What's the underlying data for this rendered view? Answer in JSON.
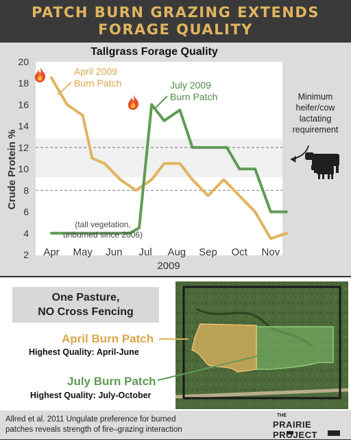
{
  "header": {
    "title_line1": "PATCH BURN GRAZING EXTENDS",
    "title_line2": "FORAGE QUALITY"
  },
  "chart_data": {
    "type": "line",
    "title": "Tallgrass Forage Quality",
    "ylabel": "Crude Protein %",
    "xlabel": "2009",
    "categories": [
      "Apr",
      "May",
      "Jun",
      "Jul",
      "Aug",
      "Sep",
      "Oct",
      "Nov"
    ],
    "yticks": [
      2,
      4,
      6,
      8,
      10,
      12,
      14,
      16,
      18,
      20
    ],
    "ylim": [
      2,
      20
    ],
    "reference_lines": [
      8,
      12
    ],
    "requirement_label": [
      "Minimum",
      "heifer/cow",
      "lactating",
      "requirement"
    ],
    "series": [
      {
        "name_lines": [
          "April 2009",
          "Burn Patch"
        ],
        "color": "#e0b45f",
        "points": [
          [
            0,
            18.5
          ],
          [
            0.5,
            16
          ],
          [
            1,
            15
          ],
          [
            1.3,
            11
          ],
          [
            1.7,
            10.5
          ],
          [
            2.2,
            9
          ],
          [
            2.7,
            8
          ],
          [
            3.2,
            9
          ],
          [
            3.6,
            10.5
          ],
          [
            4.1,
            10.5
          ],
          [
            4.5,
            9
          ],
          [
            5,
            7.5
          ],
          [
            5.5,
            9
          ],
          [
            6,
            7.5
          ],
          [
            6.5,
            6
          ],
          [
            7,
            3.5
          ],
          [
            7.5,
            4
          ]
        ]
      },
      {
        "name_lines": [
          "July 2009",
          "Burn Patch"
        ],
        "color": "#5f9a55",
        "points": [
          [
            0,
            4
          ],
          [
            2.5,
            4
          ],
          [
            2.8,
            4.5
          ],
          [
            3.2,
            16
          ],
          [
            3.6,
            14.5
          ],
          [
            4.1,
            15.5
          ],
          [
            4.5,
            12
          ],
          [
            5.3,
            12
          ],
          [
            5.6,
            12
          ],
          [
            6,
            10
          ],
          [
            6.5,
            10
          ],
          [
            7,
            6
          ],
          [
            7.5,
            6
          ]
        ]
      }
    ],
    "annotation_lines": [
      "(tall vegetation,",
      "unburned since 2006)"
    ]
  },
  "map": {
    "box_lines": [
      "One Pasture,",
      "NO Cross Fencing"
    ],
    "april_label": "April Burn Patch",
    "april_quality": "Highest Quality: April-June",
    "july_label": "July Burn Patch",
    "july_quality": "Highest Quality: July-October",
    "april_color": "#e0b45f",
    "july_color": "#5f9a55"
  },
  "footer": {
    "citation_line1": "Allred et al. 2011 Ungulate preference for burned",
    "citation_line2": "patches reveals strength of fire–grazing interaction",
    "logo_small": "THE",
    "logo_big": "PRAIRIE PROJECT"
  }
}
